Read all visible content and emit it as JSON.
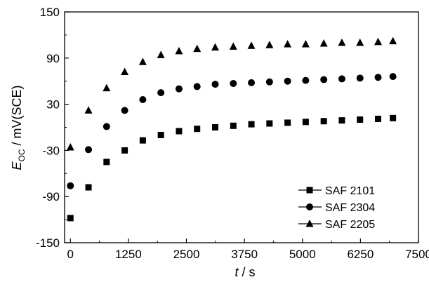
{
  "chart_data": {
    "type": "scatter",
    "xlabel": {
      "var": "t",
      "unit": " / s"
    },
    "ylabel": {
      "var": "E",
      "sub": "OC",
      "unit": " / mV(SCE)"
    },
    "xlim": [
      -125,
      7500
    ],
    "ylim": [
      -150,
      150
    ],
    "xticks": [
      "0",
      "1250",
      "2500",
      "3750",
      "5000",
      "6250",
      "7500"
    ],
    "yticks": [
      "-150",
      "-90",
      "-30",
      "30",
      "90",
      "150"
    ],
    "grid": false,
    "legend_position": "bottom-right",
    "series": [
      {
        "name": "SAF 2101",
        "marker": "square",
        "x": [
          0,
          390,
          780,
          1170,
          1560,
          1950,
          2340,
          2730,
          3120,
          3510,
          3900,
          4290,
          4680,
          5070,
          5460,
          5850,
          6240,
          6630,
          6950
        ],
        "y": [
          -118,
          -78,
          -45,
          -30,
          -17,
          -10,
          -5,
          -2,
          0,
          2,
          4,
          5,
          6,
          7,
          8,
          9,
          10,
          11,
          12
        ]
      },
      {
        "name": "SAF 2304",
        "marker": "circle",
        "x": [
          0,
          390,
          780,
          1170,
          1560,
          1950,
          2340,
          2730,
          3120,
          3510,
          3900,
          4290,
          4680,
          5070,
          5460,
          5850,
          6240,
          6630,
          6950
        ],
        "y": [
          -76,
          -29,
          1,
          22,
          36,
          45,
          50,
          53,
          56,
          57,
          58,
          59,
          60,
          61,
          62,
          63,
          64,
          65,
          66
        ]
      },
      {
        "name": "SAF 2205",
        "marker": "triangle",
        "x": [
          0,
          390,
          780,
          1170,
          1560,
          1950,
          2340,
          2730,
          3120,
          3510,
          3900,
          4290,
          4680,
          5070,
          5460,
          5850,
          6240,
          6630,
          6950
        ],
        "y": [
          -26,
          22,
          51,
          72,
          85,
          94,
          99,
          102,
          104,
          105,
          106,
          107,
          108,
          108,
          109,
          110,
          110,
          111,
          112
        ]
      }
    ]
  }
}
